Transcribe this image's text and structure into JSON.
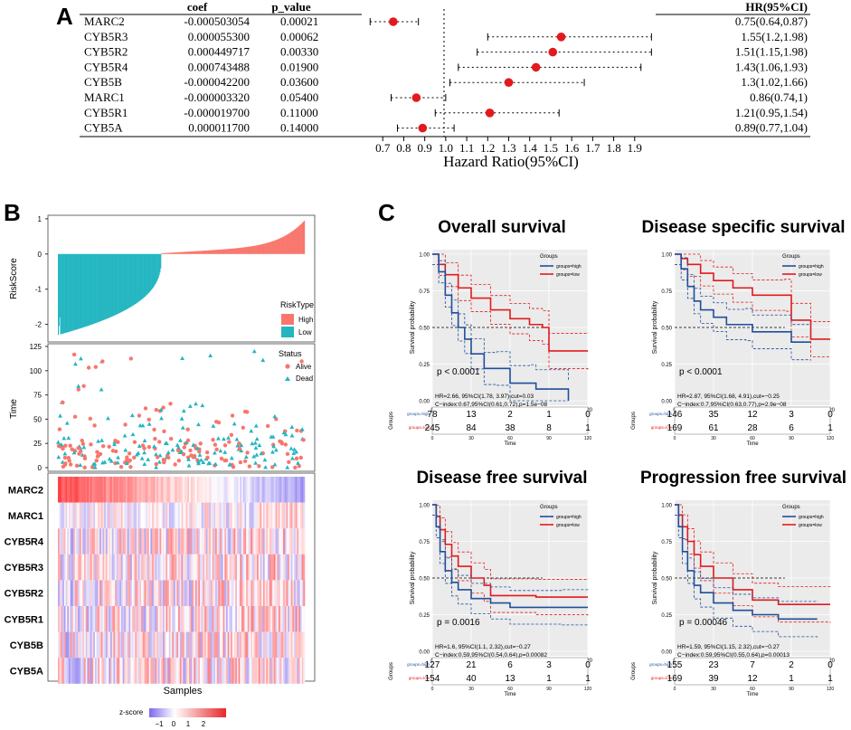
{
  "panels": {
    "a": "A",
    "b": "B",
    "c": "C"
  },
  "colors": {
    "red": "#e31a1c",
    "blue": "#1f4e9c",
    "salmon": "#f8766d",
    "teal": "#22b6c1",
    "zlow": "#7b68ee",
    "zhigh": "#e8262a"
  },
  "chart_data": [
    {
      "type": "forest",
      "title": "Hazard Ratio(95%CI)",
      "columns": {
        "name": "",
        "coef": "coef",
        "p": "p_value",
        "hr": "HR(95%CI)"
      },
      "xlim": [
        0.6,
        2.0
      ],
      "ticks": [
        "0.7",
        "0.8",
        "0.9",
        "1.0",
        "1.1",
        "1.2",
        "1.3",
        "1.4",
        "1.5",
        "1.6",
        "1.7",
        "1.8",
        "1.9"
      ],
      "rows": [
        {
          "gene": "MARC2",
          "coef": "-0.000503054",
          "p": "0.00021",
          "hr": 0.75,
          "lo": 0.64,
          "hi": 0.87,
          "label": "0.75(0.64,0.87)"
        },
        {
          "gene": "CYB5R3",
          "coef": "0.000055300",
          "p": "0.00062",
          "hr": 1.55,
          "lo": 1.2,
          "hi": 1.98,
          "label": "1.55(1.2,1.98)"
        },
        {
          "gene": "CYB5R2",
          "coef": "0.000449717",
          "p": "0.00330",
          "hr": 1.51,
          "lo": 1.15,
          "hi": 1.98,
          "label": "1.51(1.15,1.98)"
        },
        {
          "gene": "CYB5R4",
          "coef": "0.000743488",
          "p": "0.01900",
          "hr": 1.43,
          "lo": 1.06,
          "hi": 1.93,
          "label": "1.43(1.06,1.93)"
        },
        {
          "gene": "CYB5B",
          "coef": "-0.000042200",
          "p": "0.03600",
          "hr": 1.3,
          "lo": 1.02,
          "hi": 1.66,
          "label": "1.3(1.02,1.66)"
        },
        {
          "gene": "MARC1",
          "coef": "-0.000003320",
          "p": "0.05400",
          "hr": 0.86,
          "lo": 0.74,
          "hi": 1.0,
          "label": "0.86(0.74,1)"
        },
        {
          "gene": "CYB5R1",
          "coef": "-0.000019700",
          "p": "0.11000",
          "hr": 1.21,
          "lo": 0.95,
          "hi": 1.54,
          "label": "1.21(0.95,1.54)"
        },
        {
          "gene": "CYB5A",
          "coef": "0.000011700",
          "p": "0.14000",
          "hr": 0.89,
          "lo": 0.77,
          "hi": 1.04,
          "label": "0.89(0.77,1.04)"
        }
      ]
    },
    {
      "type": "risk-score-bar",
      "ylabel": "RiskScore",
      "yticks": [
        "1",
        "0",
        "-1",
        "-2"
      ],
      "ylim": [
        -2.5,
        1.1
      ],
      "legend_title": "RiskType",
      "legend": [
        "High",
        "Low"
      ],
      "n": 323,
      "low_count": 135
    },
    {
      "type": "scatter",
      "ylabel": "Time",
      "yticks": [
        "0",
        "25",
        "50",
        "75",
        "100",
        "125"
      ],
      "ylim": [
        0,
        125
      ],
      "legend_title": "Status",
      "legend": [
        "Alive",
        "Dead"
      ]
    },
    {
      "type": "heatmap",
      "xlabel": "Samples",
      "rows": [
        "MARC2",
        "MARC1",
        "CYB5R4",
        "CYB5R3",
        "CYB5R2",
        "CYB5R1",
        "CYB5B",
        "CYB5A"
      ],
      "legend_title": "z-score",
      "legend_ticks": [
        "−1",
        "0",
        "1",
        "2"
      ]
    },
    {
      "type": "km",
      "title": "Overall survival",
      "legend_title": "Groups",
      "legend": [
        "groups=high",
        "groups=low"
      ],
      "ylabel": "Survival probability",
      "xlabel": "Time",
      "yticks": [
        "1.00",
        "0.75",
        "0.50",
        "0.25",
        "0.00"
      ],
      "xticks": [
        "0",
        "30",
        "60",
        "90",
        "120"
      ],
      "xlim": [
        0,
        120
      ],
      "pvalue": "p < 0.0001",
      "hr_text": "HR=2.66, 95%CI(1.78, 3.97),cut=0.03",
      "cindex_text": "C−index:0.67,95%CI(0.61,0.72),p=1.5e−08",
      "table_title": "Groups",
      "table_rows": [
        "groups=high",
        "groups=low"
      ],
      "risk_high": [
        "78",
        "13",
        "2",
        "1",
        "0"
      ],
      "risk_low": [
        "245",
        "84",
        "38",
        "8",
        "1"
      ],
      "high_curve": [
        [
          0,
          1.0
        ],
        [
          5,
          0.88
        ],
        [
          10,
          0.72
        ],
        [
          15,
          0.6
        ],
        [
          20,
          0.5
        ],
        [
          25,
          0.42
        ],
        [
          30,
          0.32
        ],
        [
          40,
          0.22
        ],
        [
          50,
          0.22
        ],
        [
          60,
          0.12
        ],
        [
          75,
          0.12
        ],
        [
          80,
          0.08
        ],
        [
          105,
          0.0
        ]
      ],
      "low_curve": [
        [
          0,
          1.0
        ],
        [
          5,
          0.93
        ],
        [
          10,
          0.86
        ],
        [
          20,
          0.77
        ],
        [
          30,
          0.7
        ],
        [
          45,
          0.62
        ],
        [
          60,
          0.56
        ],
        [
          75,
          0.52
        ],
        [
          85,
          0.5
        ],
        [
          90,
          0.34
        ],
        [
          120,
          0.34
        ]
      ]
    },
    {
      "type": "km",
      "title": "Disease specific survival",
      "legend_title": "Groups",
      "legend": [
        "groups=high",
        "groups=low"
      ],
      "ylabel": "Survival probability",
      "xlabel": "Time",
      "yticks": [
        "1.00",
        "0.75",
        "0.50",
        "0.25",
        "0.00"
      ],
      "xticks": [
        "0",
        "30",
        "60",
        "90",
        "120"
      ],
      "xlim": [
        0,
        120
      ],
      "pvalue": "p < 0.0001",
      "hr_text": "HR=2.87, 95%CI(1.68, 4.91),cut=−0.25",
      "cindex_text": "C−index:0.7,95%CI(0.63,0.77),p=2.9e−08",
      "table_title": "Groups",
      "table_rows": [
        "groups=high",
        "groups=low"
      ],
      "risk_high": [
        "146",
        "35",
        "12",
        "3",
        "0"
      ],
      "risk_low": [
        "169",
        "61",
        "28",
        "6",
        "1"
      ],
      "high_curve": [
        [
          0,
          1.0
        ],
        [
          5,
          0.9
        ],
        [
          10,
          0.78
        ],
        [
          15,
          0.68
        ],
        [
          20,
          0.62
        ],
        [
          30,
          0.57
        ],
        [
          40,
          0.52
        ],
        [
          55,
          0.52
        ],
        [
          60,
          0.47
        ],
        [
          90,
          0.4
        ],
        [
          105,
          0.4
        ]
      ],
      "low_curve": [
        [
          0,
          1.0
        ],
        [
          5,
          0.97
        ],
        [
          10,
          0.93
        ],
        [
          20,
          0.87
        ],
        [
          30,
          0.82
        ],
        [
          45,
          0.77
        ],
        [
          60,
          0.72
        ],
        [
          85,
          0.72
        ],
        [
          90,
          0.55
        ],
        [
          105,
          0.42
        ],
        [
          120,
          0.42
        ]
      ]
    },
    {
      "type": "km",
      "title": "Disease free survival",
      "legend_title": "Groups",
      "legend": [
        "groups=high",
        "groups=low"
      ],
      "ylabel": "Survival probability",
      "xlabel": "Time",
      "yticks": [
        "1.00",
        "0.75",
        "0.50",
        "0.25",
        "0.00"
      ],
      "xticks": [
        "0",
        "30",
        "60",
        "90",
        "120"
      ],
      "xlim": [
        0,
        120
      ],
      "pvalue": "p = 0.0016",
      "hr_text": "HR=1.6, 95%CI(1.1, 2.32),cut=−0.27",
      "cindex_text": "C−index:0.59,95%CI(0.54,0.64),p=0.00082",
      "table_title": "Groups",
      "table_rows": [
        "groups=high",
        "groups=low"
      ],
      "risk_high": [
        "127",
        "21",
        "6",
        "3",
        "0"
      ],
      "risk_low": [
        "154",
        "40",
        "13",
        "1",
        "1"
      ],
      "high_curve": [
        [
          0,
          1.0
        ],
        [
          3,
          0.85
        ],
        [
          6,
          0.68
        ],
        [
          10,
          0.55
        ],
        [
          15,
          0.47
        ],
        [
          20,
          0.42
        ],
        [
          30,
          0.36
        ],
        [
          45,
          0.33
        ],
        [
          60,
          0.3
        ],
        [
          100,
          0.3
        ],
        [
          120,
          0.3
        ]
      ],
      "low_curve": [
        [
          0,
          1.0
        ],
        [
          3,
          0.92
        ],
        [
          6,
          0.83
        ],
        [
          10,
          0.73
        ],
        [
          15,
          0.65
        ],
        [
          20,
          0.58
        ],
        [
          30,
          0.5
        ],
        [
          40,
          0.45
        ],
        [
          45,
          0.38
        ],
        [
          80,
          0.37
        ],
        [
          120,
          0.37
        ]
      ]
    },
    {
      "type": "km",
      "title": "Progression free survival",
      "legend_title": "Groups",
      "legend": [
        "groups=high",
        "groups=low"
      ],
      "ylabel": "Survival probability",
      "xlabel": "Time",
      "yticks": [
        "1.00",
        "0.75",
        "0.50",
        "0.25",
        "0.00"
      ],
      "xticks": [
        "0",
        "30",
        "60",
        "90",
        "120"
      ],
      "xlim": [
        0,
        120
      ],
      "pvalue": "p = 0.00046",
      "hr_text": "HR=1.59, 95%CI(1.15, 2.32),cut=−0.27",
      "cindex_text": "C−index:0.59,95%CI(0.55,0.64),p=0.00013",
      "table_title": "Groups",
      "table_rows": [
        "groups=high",
        "groups=low"
      ],
      "risk_high": [
        "155",
        "23",
        "7",
        "2",
        "0"
      ],
      "risk_low": [
        "169",
        "39",
        "12",
        "1",
        "1"
      ],
      "high_curve": [
        [
          0,
          1.0
        ],
        [
          3,
          0.85
        ],
        [
          6,
          0.68
        ],
        [
          10,
          0.55
        ],
        [
          15,
          0.45
        ],
        [
          20,
          0.4
        ],
        [
          30,
          0.33
        ],
        [
          45,
          0.28
        ],
        [
          60,
          0.25
        ],
        [
          80,
          0.22
        ],
        [
          110,
          0.22
        ]
      ],
      "low_curve": [
        [
          0,
          1.0
        ],
        [
          3,
          0.93
        ],
        [
          6,
          0.85
        ],
        [
          10,
          0.75
        ],
        [
          15,
          0.66
        ],
        [
          20,
          0.58
        ],
        [
          30,
          0.5
        ],
        [
          45,
          0.42
        ],
        [
          60,
          0.35
        ],
        [
          80,
          0.32
        ],
        [
          120,
          0.32
        ]
      ]
    }
  ]
}
